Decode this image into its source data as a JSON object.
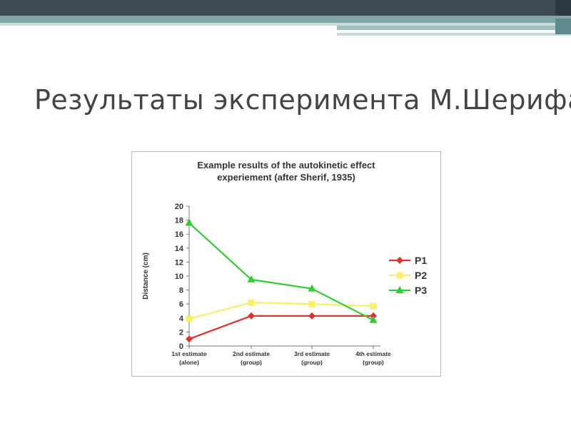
{
  "slide": {
    "title": "Результаты эксперимента М.Шерифа"
  },
  "chart_data": {
    "type": "line",
    "title_lines": [
      "Example results of the autokinetic effect",
      "experiement (after Sherif, 1935)"
    ],
    "ylabel": "Distance (cm)",
    "xlabel": "",
    "ylim": [
      0,
      20
    ],
    "yticks": [
      0,
      2,
      4,
      6,
      8,
      10,
      12,
      14,
      16,
      18,
      20
    ],
    "categories": [
      [
        "1st estimate",
        "(alone)"
      ],
      [
        "2nd estimate",
        "(group)"
      ],
      [
        "3rd estimate",
        "(group)"
      ],
      [
        "4th estimate",
        "(group)"
      ]
    ],
    "grid": false,
    "legend_position": "right",
    "series": [
      {
        "name": "P1",
        "color": "#e03030",
        "marker": "diamond",
        "values": [
          1.0,
          4.3,
          4.3,
          4.3
        ]
      },
      {
        "name": "P2",
        "color": "#f7f066",
        "marker": "square",
        "values": [
          3.9,
          6.2,
          6.0,
          5.7
        ]
      },
      {
        "name": "P3",
        "color": "#33cc33",
        "marker": "triangle",
        "values": [
          17.6,
          9.5,
          8.2,
          3.7
        ]
      }
    ]
  }
}
